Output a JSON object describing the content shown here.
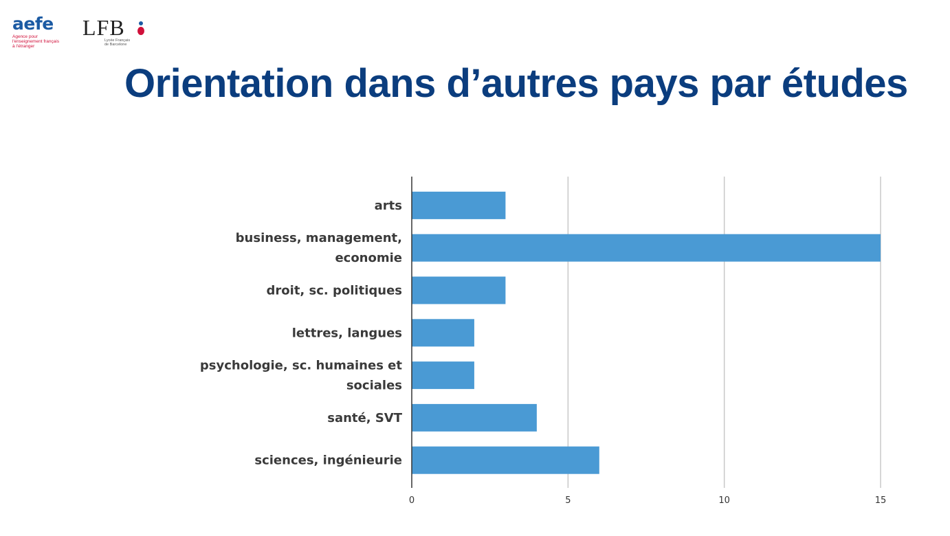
{
  "logos": {
    "aefe_word": "aefe",
    "aefe_tagline": [
      "Agence pour",
      "l'enseignement français",
      "à l'étranger"
    ],
    "lfb_word": "LFB",
    "lfb_subtitle": [
      "Lycée Français",
      "de Barcelone"
    ]
  },
  "title": "Orientation dans d’autres pays par études",
  "colors": {
    "title": "#0b3d7e",
    "bar": "#4a9ad4",
    "grid": "#c8c8c8",
    "axis": "#333333"
  },
  "chart_data": {
    "type": "bar",
    "orientation": "horizontal",
    "categories": [
      [
        "arts"
      ],
      [
        "business, management,",
        "economie"
      ],
      [
        "droit, sc. politiques"
      ],
      [
        "lettres, langues"
      ],
      [
        "psychologie, sc. humaines et",
        "sociales"
      ],
      [
        "santé, SVT"
      ],
      [
        "sciences, ingénieurie"
      ]
    ],
    "values": [
      3,
      15,
      3,
      2,
      2,
      4,
      6
    ],
    "xlim": [
      0,
      15
    ],
    "xticks": [
      "0",
      "5",
      "10",
      "15"
    ],
    "grid": true,
    "title": "",
    "xlabel": "",
    "ylabel": ""
  }
}
